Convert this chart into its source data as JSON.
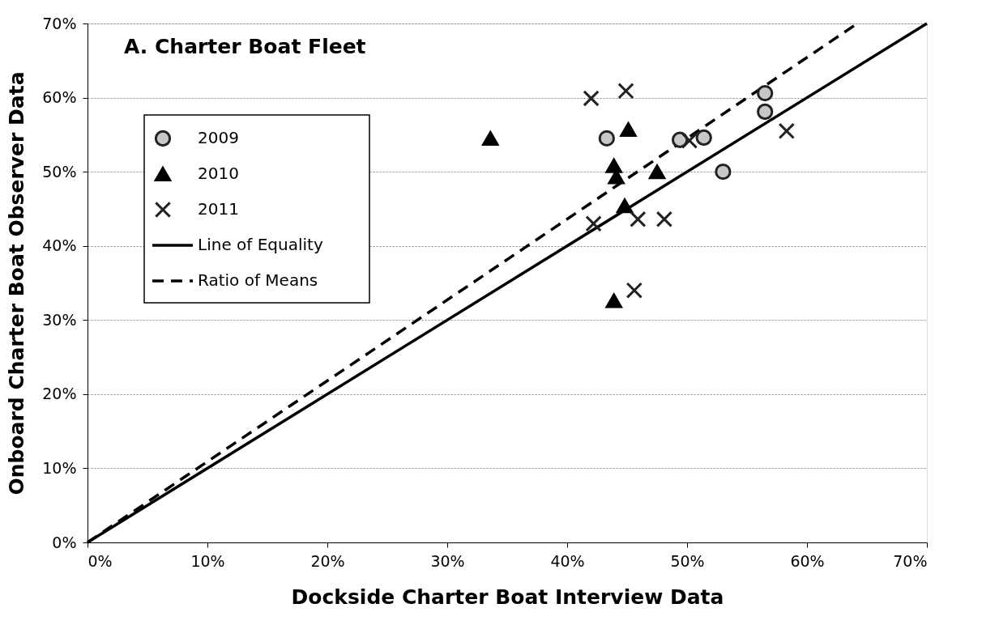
{
  "chart_data": {
    "type": "scatter",
    "title": "A. Charter Boat  Fleet",
    "xlabel": "Dockside Charter Boat Interview Data",
    "ylabel": "Onboard Charter Boat Observer Data",
    "xlim": [
      0,
      70
    ],
    "ylim": [
      0,
      70
    ],
    "xticks": [
      {
        "value": 0,
        "label": "0%"
      },
      {
        "value": 10,
        "label": "10%"
      },
      {
        "value": 20,
        "label": "20%"
      },
      {
        "value": 30,
        "label": "30%"
      },
      {
        "value": 40,
        "label": "40%"
      },
      {
        "value": 50,
        "label": "50%"
      },
      {
        "value": 60,
        "label": "60%"
      },
      {
        "value": 70,
        "label": "70%"
      }
    ],
    "yticks": [
      {
        "value": 0,
        "label": "0%"
      },
      {
        "value": 10,
        "label": "10%"
      },
      {
        "value": 20,
        "label": "20%"
      },
      {
        "value": 30,
        "label": "30%"
      },
      {
        "value": 40,
        "label": "40%"
      },
      {
        "value": 50,
        "label": "50%"
      },
      {
        "value": 60,
        "label": "60%"
      },
      {
        "value": 70,
        "label": "70%"
      }
    ],
    "grid": "y",
    "legend": "top left",
    "series": [
      {
        "name": "2009",
        "marker": "circle",
        "color": "#c8c8c8",
        "x": [
          43.3,
          49.4,
          51.4,
          53.0,
          56.5,
          56.5
        ],
        "values": [
          54.5,
          54.3,
          54.6,
          50.0,
          60.6,
          58.1
        ]
      },
      {
        "name": "2010",
        "marker": "triangle",
        "color": "#000000",
        "x": [
          33.6,
          45.1,
          43.9,
          44.1,
          47.5,
          44.8,
          43.9
        ],
        "values": [
          54.5,
          55.7,
          50.8,
          49.3,
          50.0,
          45.4,
          32.6
        ]
      },
      {
        "name": "2011",
        "marker": "cross",
        "color": "#222222",
        "x": [
          42.0,
          44.9,
          50.2,
          58.3,
          42.2,
          45.9,
          48.1,
          45.6
        ],
        "values": [
          59.9,
          60.9,
          54.2,
          55.5,
          43.0,
          43.6,
          43.6,
          34.0
        ]
      },
      {
        "name": "Line of Equality",
        "type": "line",
        "line_style": "solid",
        "color": "#000000",
        "x": [
          0,
          70
        ],
        "values": [
          0,
          70
        ]
      },
      {
        "name": "Ratio of Means",
        "type": "line",
        "line_style": "dashed",
        "color": "#000000",
        "x": [
          0,
          64.2
        ],
        "values": [
          0,
          70
        ]
      }
    ]
  }
}
